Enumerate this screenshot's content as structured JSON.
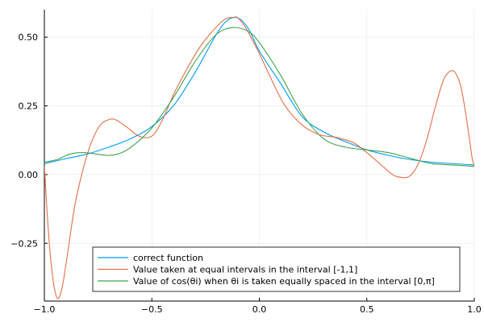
{
  "chart_data": {
    "type": "line",
    "title": "",
    "xlabel": "",
    "ylabel": "",
    "xlim": [
      -1,
      1
    ],
    "ylim": [
      -0.46,
      0.6
    ],
    "xticks": [
      -1,
      -0.5,
      0,
      0.5,
      1
    ],
    "xtick_labels": [
      "−1.0",
      "−0.5",
      "0.0",
      "0.5",
      "1.0"
    ],
    "yticks": [
      -0.25,
      0,
      0.25,
      0.5
    ],
    "ytick_labels": [
      "−0.25",
      "0.00",
      "0.25",
      "0.50"
    ],
    "grid": true,
    "legend_position": "bottom-right",
    "series": [
      {
        "name": "correct function",
        "color": "#009AFA",
        "x": [
          -1,
          -0.9,
          -0.8,
          -0.7,
          -0.6,
          -0.5,
          -0.4,
          -0.3,
          -0.2,
          -0.15,
          -0.1,
          -0.05,
          0,
          0.1,
          0.2,
          0.3,
          0.4,
          0.5,
          0.6,
          0.7,
          0.8,
          0.9,
          1
        ],
        "y": [
          0.04,
          0.058,
          0.075,
          0.1,
          0.13,
          0.175,
          0.25,
          0.37,
          0.51,
          0.56,
          0.57,
          0.53,
          0.45,
          0.33,
          0.21,
          0.155,
          0.12,
          0.09,
          0.07,
          0.055,
          0.045,
          0.04,
          0.035
        ]
      },
      {
        "name": "Value taken at equal intervals in the interval [-1,1]",
        "color": "#E26F46",
        "x": [
          -1,
          -0.98,
          -0.96,
          -0.94,
          -0.92,
          -0.9,
          -0.86,
          -0.82,
          -0.78,
          -0.74,
          -0.7,
          -0.67,
          -0.62,
          -0.56,
          -0.5,
          -0.45,
          -0.4,
          -0.34,
          -0.28,
          -0.22,
          -0.16,
          -0.12,
          -0.1,
          -0.06,
          0,
          0.06,
          0.12,
          0.2,
          0.28,
          0.36,
          0.44,
          0.5,
          0.56,
          0.62,
          0.66,
          0.7,
          0.74,
          0.78,
          0.82,
          0.86,
          0.9,
          0.93,
          0.95,
          0.97,
          0.99,
          1
        ],
        "y": [
          0.03,
          -0.22,
          -0.38,
          -0.45,
          -0.42,
          -0.33,
          -0.12,
          0.02,
          0.12,
          0.18,
          0.2,
          0.2,
          0.175,
          0.14,
          0.14,
          0.2,
          0.29,
          0.38,
          0.46,
          0.52,
          0.565,
          0.572,
          0.57,
          0.53,
          0.44,
          0.34,
          0.25,
          0.18,
          0.145,
          0.135,
          0.115,
          0.08,
          0.04,
          0.0,
          -0.01,
          -0.005,
          0.04,
          0.13,
          0.25,
          0.35,
          0.378,
          0.34,
          0.27,
          0.17,
          0.06,
          0.03
        ]
      },
      {
        "name": "Value of cos(θi) when θi is taken equally spaced in the interval [0,π]",
        "color": "#3EA44E",
        "x": [
          -1,
          -0.94,
          -0.88,
          -0.82,
          -0.76,
          -0.7,
          -0.64,
          -0.58,
          -0.5,
          -0.4,
          -0.3,
          -0.2,
          -0.12,
          -0.05,
          0,
          0.1,
          0.2,
          0.3,
          0.4,
          0.5,
          0.6,
          0.7,
          0.8,
          0.9,
          1
        ],
        "y": [
          0.045,
          0.055,
          0.075,
          0.08,
          0.075,
          0.07,
          0.08,
          0.11,
          0.17,
          0.28,
          0.41,
          0.51,
          0.535,
          0.52,
          0.48,
          0.36,
          0.22,
          0.13,
          0.1,
          0.09,
          0.08,
          0.06,
          0.04,
          0.035,
          0.03
        ]
      }
    ]
  }
}
